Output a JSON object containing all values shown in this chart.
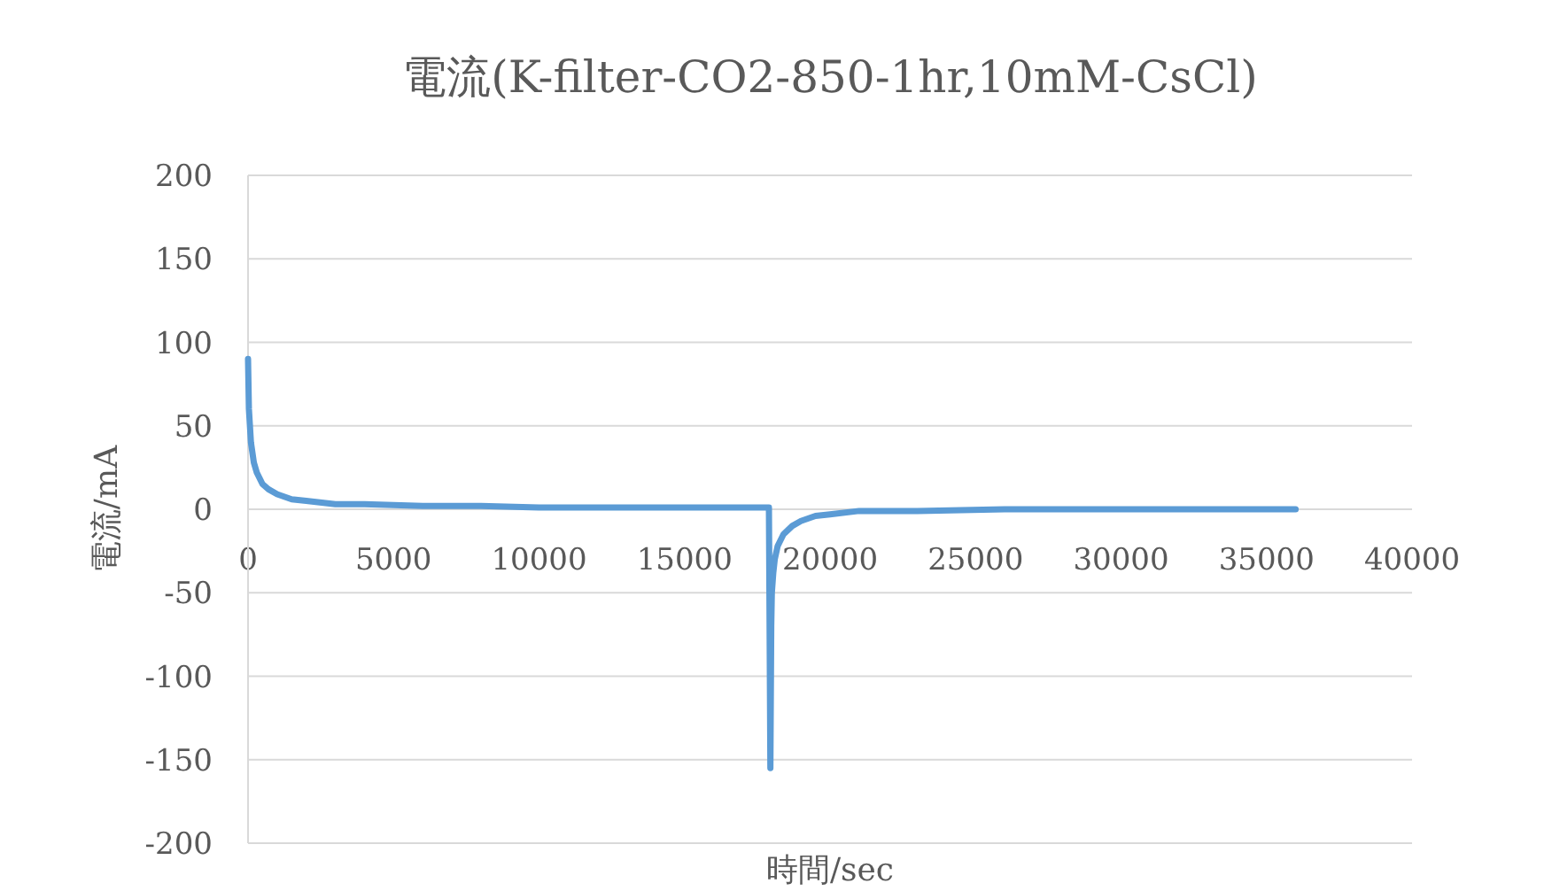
{
  "chart_data": {
    "type": "line",
    "title": "電流(K-filter-CO2-850-1hr,10mM-CsCl)",
    "xlabel": "時間/sec",
    "ylabel": "電流/mA",
    "xlim": [
      0,
      40000
    ],
    "xticks": [
      0,
      5000,
      10000,
      15000,
      20000,
      25000,
      30000,
      35000,
      40000
    ],
    "ylim": [
      -200,
      200
    ],
    "yticks": [
      -200,
      -150,
      -100,
      -50,
      0,
      50,
      100,
      150,
      200
    ],
    "grid": "y",
    "marker": "none",
    "line_style": "solid",
    "series": [
      {
        "color": "#5b9bd5",
        "x": [
          0,
          30,
          100,
          200,
          300,
          500,
          700,
          1000,
          1500,
          2000,
          3000,
          4000,
          6000,
          8000,
          10000,
          13000,
          16000,
          17900,
          17950,
          17980,
          18000,
          18050,
          18100,
          18200,
          18400,
          18700,
          19000,
          19500,
          20000,
          21000,
          23000,
          26000,
          30000,
          36000
        ],
        "values": [
          90,
          60,
          40,
          28,
          22,
          15,
          12,
          9,
          6,
          5,
          3,
          3,
          2,
          2,
          1,
          1,
          1,
          1,
          -155,
          -70,
          -50,
          -38,
          -30,
          -22,
          -15,
          -10,
          -7,
          -4,
          -3,
          -1,
          -1,
          0,
          0,
          0
        ]
      }
    ]
  }
}
